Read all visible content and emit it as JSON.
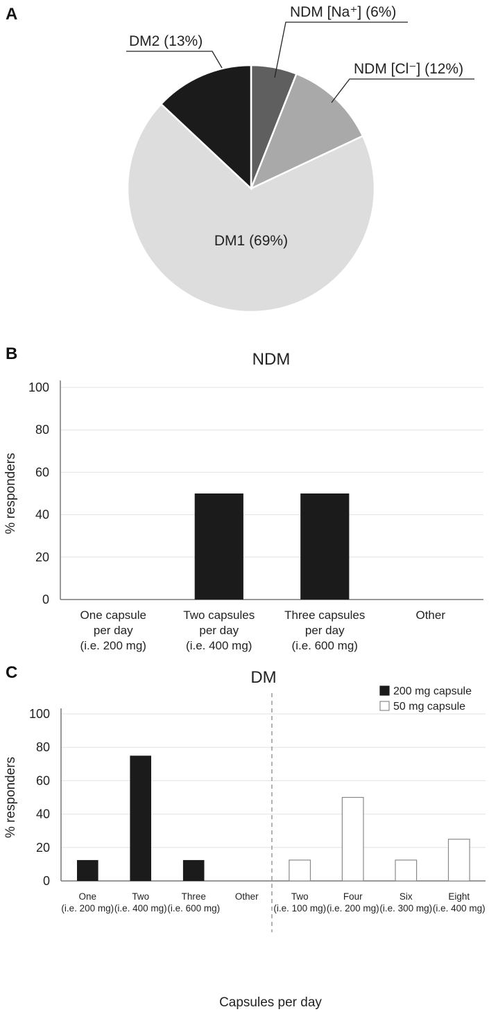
{
  "chart_data": [
    {
      "panel": "A",
      "type": "pie",
      "title": "",
      "slices": [
        {
          "name": "NDM [Na+]",
          "label": "NDM [Na⁺] (6%)",
          "value": 6,
          "color": "#5f5f5f"
        },
        {
          "name": "NDM [Cl-]",
          "label": "NDM [Cl⁻] (12%)",
          "value": 12,
          "color": "#a9a9a9"
        },
        {
          "name": "DM1",
          "label": "DM1 (69%)",
          "value": 69,
          "color": "#dddddd"
        },
        {
          "name": "DM2",
          "label": "DM2 (13%)",
          "value": 13,
          "color": "#1b1b1b"
        }
      ]
    },
    {
      "panel": "B",
      "type": "bar",
      "title": "NDM",
      "ylabel": "% responders",
      "xlabel": "",
      "ylim": [
        0,
        100
      ],
      "yticks": [
        0,
        20,
        40,
        60,
        80,
        100
      ],
      "grid": true,
      "categories": [
        [
          "One capsule",
          "per day",
          "(i.e. 200 mg)"
        ],
        [
          "Two capsules",
          "per day",
          "(i.e. 400 mg)"
        ],
        [
          "Three capsules",
          "per day",
          "(i.e. 600 mg)"
        ],
        [
          "Other"
        ]
      ],
      "series": [
        {
          "name": "NDM",
          "values": [
            0,
            50,
            50,
            0
          ],
          "color": "#1b1b1b"
        }
      ]
    },
    {
      "panel": "C",
      "type": "bar",
      "title": "DM",
      "ylabel": "% responders",
      "xlabel": "Capsules per day",
      "ylim": [
        0,
        100
      ],
      "yticks": [
        0,
        20,
        40,
        60,
        80,
        100
      ],
      "grid": true,
      "legend_position": "top-right",
      "categories": [
        [
          "One",
          "(i.e. 200 mg)"
        ],
        [
          "Two",
          "(i.e. 400 mg)"
        ],
        [
          "Three",
          "(i.e. 600 mg)"
        ],
        [
          "Other"
        ],
        [
          "Two",
          "(i.e. 100 mg)"
        ],
        [
          "Four",
          "(i.e. 200 mg)"
        ],
        [
          "Six",
          "(i.e. 300 mg)"
        ],
        [
          "Eight",
          "(i.e. 400 mg)"
        ]
      ],
      "series": [
        {
          "name": "200 mg capsule",
          "values": [
            12.5,
            75,
            12.5,
            0,
            null,
            null,
            null,
            null
          ],
          "color": "#1b1b1b"
        },
        {
          "name": "50 mg capsule",
          "values": [
            null,
            null,
            null,
            null,
            12.5,
            50,
            12.5,
            25
          ],
          "color": "#ffffff"
        }
      ]
    }
  ]
}
